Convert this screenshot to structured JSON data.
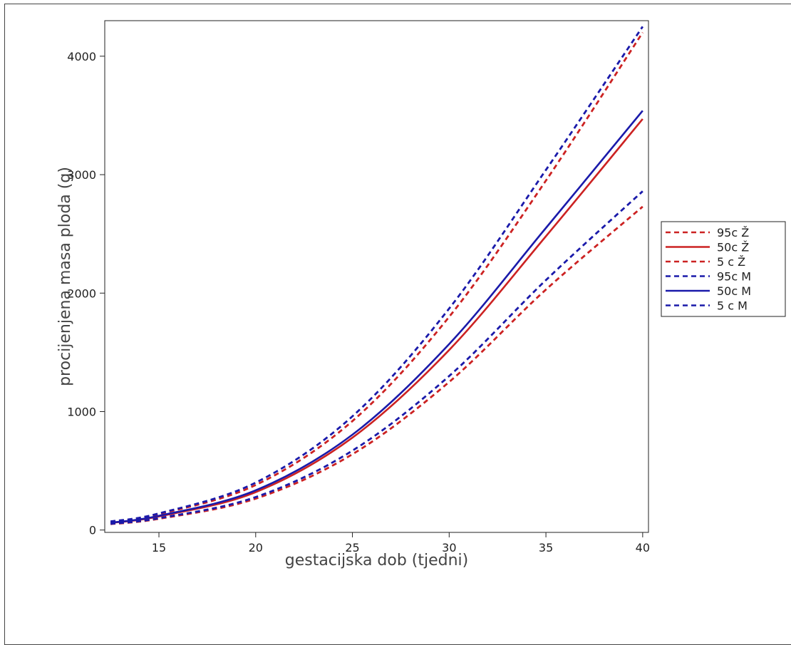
{
  "chart_data": {
    "type": "line",
    "xlabel": "gestacijska dob (tjedni)",
    "ylabel": "procijenjena masa ploda (g)",
    "xlim": [
      12.2,
      40.3
    ],
    "ylim": [
      -20,
      4300
    ],
    "xticks": [
      15,
      20,
      25,
      30,
      35,
      40
    ],
    "yticks": [
      0,
      1000,
      2000,
      3000,
      4000
    ],
    "grid": false,
    "legend_position": "right",
    "x": [
      12.5,
      15,
      20,
      25,
      30,
      35,
      40
    ],
    "series": [
      {
        "name": "95c  Ž",
        "color": "#cc2222",
        "style": "dashed",
        "values": [
          70,
          135,
          380,
          920,
          1800,
          2950,
          4200
        ]
      },
      {
        "name": "50c  Ž",
        "color": "#cc2222",
        "style": "solid",
        "values": [
          60,
          115,
          320,
          780,
          1520,
          2480,
          3470
        ]
      },
      {
        "name": "5 c  Ž",
        "color": "#cc2222",
        "style": "dashed",
        "values": [
          50,
          95,
          265,
          640,
          1250,
          2030,
          2730
        ]
      },
      {
        "name": "95c  M",
        "color": "#1a1aaa",
        "style": "dashed",
        "values": [
          72,
          140,
          400,
          960,
          1870,
          3040,
          4250
        ]
      },
      {
        "name": "50c  M",
        "color": "#1a1aaa",
        "style": "solid",
        "values": [
          62,
          120,
          335,
          805,
          1570,
          2550,
          3540
        ]
      },
      {
        "name": "5 c  M",
        "color": "#1a1aaa",
        "style": "dashed",
        "values": [
          52,
          100,
          278,
          670,
          1300,
          2110,
          2860
        ]
      }
    ]
  }
}
